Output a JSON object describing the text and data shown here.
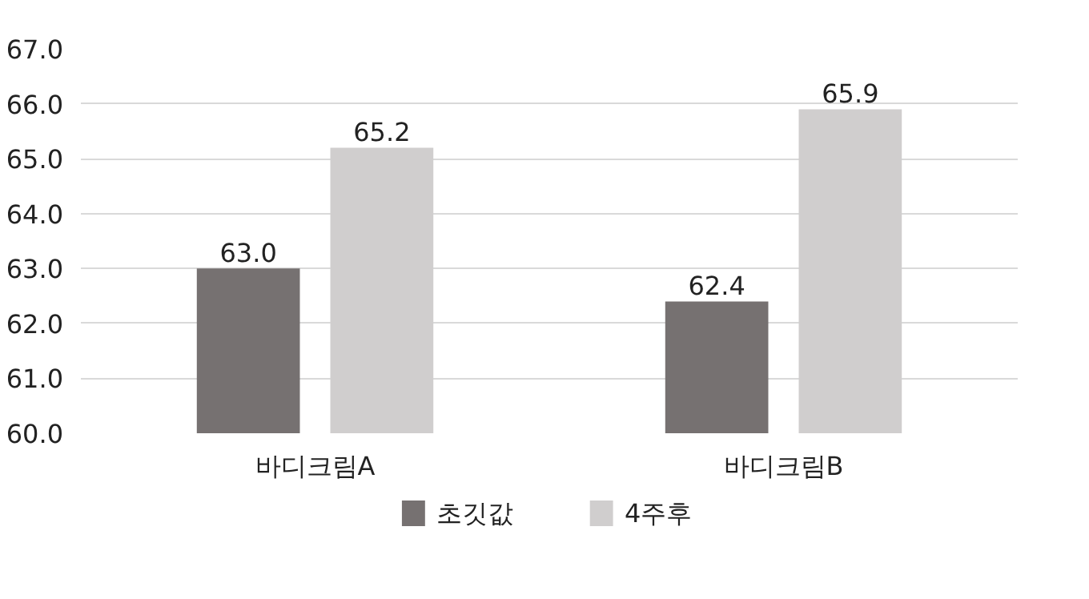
{
  "chart_data": {
    "type": "bar",
    "categories": [
      "바디크림A",
      "바디크림B"
    ],
    "series": [
      {
        "name": "초깃값",
        "color": "#767171",
        "values": [
          63.0,
          62.4
        ],
        "value_labels": [
          "63.0",
          "62.4"
        ]
      },
      {
        "name": "4주후",
        "color": "#d0cece",
        "values": [
          65.2,
          65.9
        ],
        "value_labels": [
          "65.2",
          "65.9"
        ]
      }
    ],
    "ylim": [
      60,
      67
    ],
    "yticks": [
      {
        "value": 60,
        "label": "60.0"
      },
      {
        "value": 61,
        "label": "61.0"
      },
      {
        "value": 62,
        "label": "62.0"
      },
      {
        "value": 63,
        "label": "63.0"
      },
      {
        "value": 64,
        "label": "64.0"
      },
      {
        "value": 65,
        "label": "65.0"
      },
      {
        "value": 66,
        "label": "66.0"
      },
      {
        "value": 67,
        "label": "67.0"
      }
    ],
    "grid": "y",
    "legend": "bottom"
  }
}
